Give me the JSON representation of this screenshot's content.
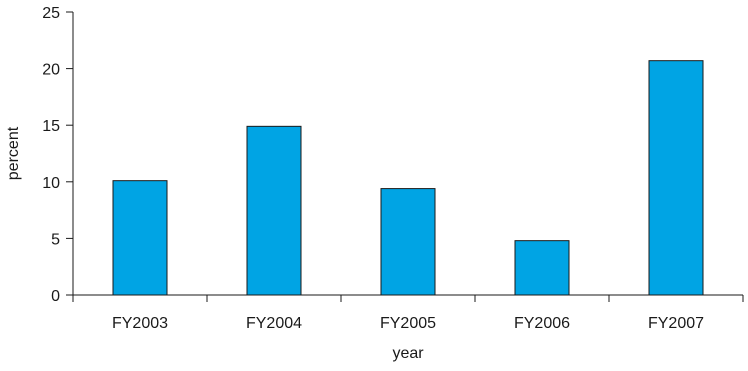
{
  "chart_data": {
    "type": "bar",
    "categories": [
      "FY2003",
      "FY2004",
      "FY2005",
      "FY2006",
      "FY2007"
    ],
    "values": [
      10.1,
      14.9,
      9.4,
      4.8,
      20.7
    ],
    "xlabel": "year",
    "ylabel": "percent",
    "ylim": [
      0,
      25
    ],
    "yticks": [
      "0",
      "5",
      "10",
      "15",
      "20",
      "25"
    ],
    "bar_color": "#00a4e4",
    "bar_stroke": "#1a1a1a",
    "grid": false,
    "legend": "none"
  }
}
